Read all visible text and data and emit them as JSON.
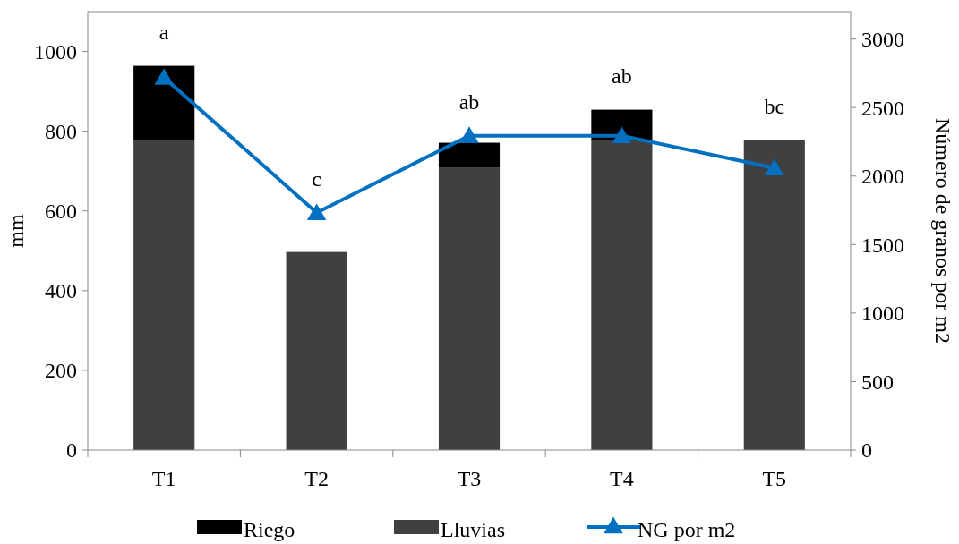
{
  "chart_data": {
    "type": "bar",
    "stacked": true,
    "categories": [
      "T1",
      "T2",
      "T3",
      "T4",
      "T5"
    ],
    "ylabel": "mm",
    "y2label": "Número de granos por m2",
    "ylim": [
      0,
      1100
    ],
    "yticks": [
      0,
      200,
      400,
      600,
      800,
      1000
    ],
    "y2lim": [
      0,
      3200
    ],
    "y2ticks": [
      0,
      500,
      1000,
      1500,
      2000,
      2500,
      3000
    ],
    "series": [
      {
        "name": "Lluvias",
        "color": "#404040",
        "values": [
          777,
          497,
          708,
          777,
          777
        ]
      },
      {
        "name": "Riego",
        "color": "#000000",
        "values": [
          187,
          0,
          63,
          77,
          0
        ]
      },
      {
        "name": "NG por m2",
        "type": "line",
        "axis": "y2",
        "color": "#0070c0",
        "marker": "triangle",
        "values": [
          2719,
          1732,
          2294,
          2294,
          2059
        ]
      }
    ],
    "annotations": [
      "a",
      "c",
      "ab",
      "ab",
      "bc"
    ],
    "grid": false,
    "legend": "bottom"
  }
}
